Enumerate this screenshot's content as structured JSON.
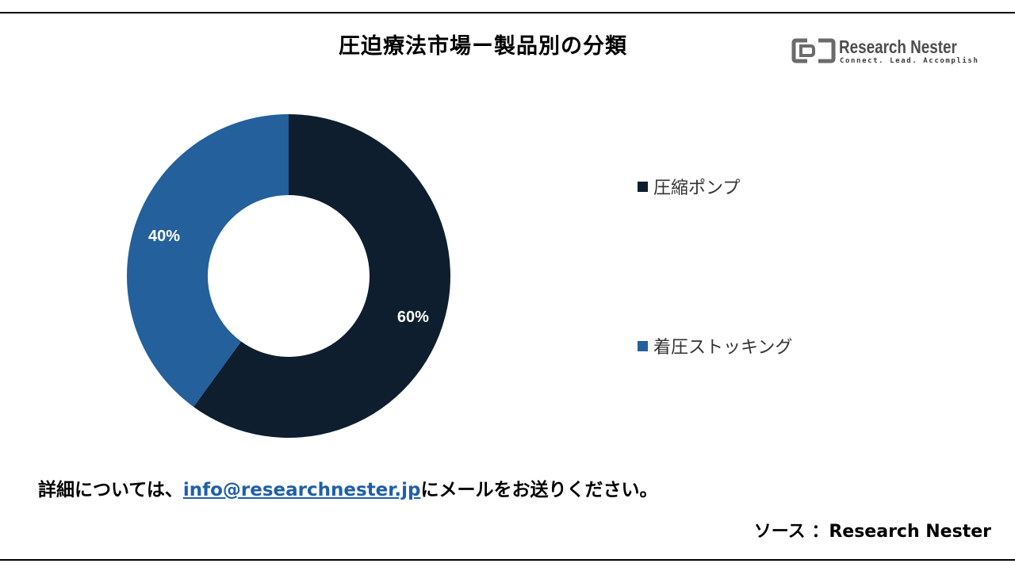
{
  "title": "圧迫療法市場ー製品別の分類",
  "logo": {
    "name": "Research Nester",
    "tagline": "Connect. Lead. Accomplish",
    "color": "#4d4d4d"
  },
  "chart_data": {
    "type": "pie",
    "subtype": "donut",
    "categories": [
      "圧縮ポンプ",
      "着圧ストッキング"
    ],
    "values": [
      60,
      40
    ],
    "labels": [
      "60%",
      "40%"
    ],
    "colors": [
      "#0e1e2f",
      "#23609c"
    ],
    "legend_position": "right"
  },
  "contact": {
    "prefix": "詳細については、",
    "email": "info@researchnester.jp",
    "suffix": "にメールをお送りください。"
  },
  "source": "ソース ：Research Nester"
}
